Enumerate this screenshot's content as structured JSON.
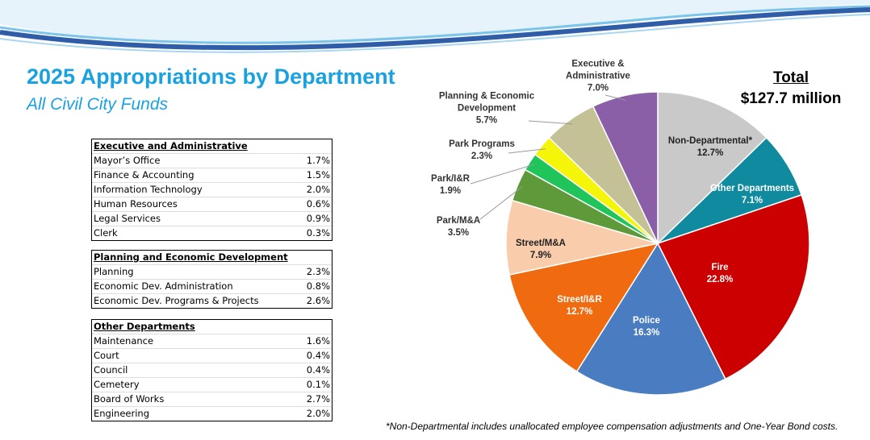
{
  "chart_data": {
    "type": "pie",
    "title": "2025 Appropriations by Department",
    "subtitle": "All Civil City Funds",
    "total_label": "Total",
    "total_value": "$127.7 million",
    "footnote": "*Non-Departmental includes unallocated employee compensation adjustments and One-Year Bond costs.",
    "categories": [
      "Non-Departmental*",
      "Other Departments",
      "Fire",
      "Police",
      "Street/I&R",
      "Street/M&A",
      "Park/M&A",
      "Park/I&R",
      "Park Programs",
      "Planning & Economic Development",
      "Executive & Administrative"
    ],
    "values": [
      12.7,
      7.1,
      22.8,
      16.3,
      12.7,
      7.9,
      3.5,
      1.9,
      2.3,
      5.7,
      7.0
    ],
    "value_labels": [
      "12.7%",
      "7.1%",
      "22.8%",
      "16.3%",
      "12.7%",
      "7.9%",
      "3.5%",
      "1.9%",
      "2.3%",
      "5.7%",
      "7.0%"
    ],
    "colors": [
      "#c9c9c9",
      "#0f8a9e",
      "#cc0000",
      "#4a7cc1",
      "#f06a0f",
      "#f9cdac",
      "#5e9a3a",
      "#1fc45a",
      "#f5f50a",
      "#c4c196",
      "#8a5fa8"
    ]
  },
  "tables": [
    {
      "title": "Executive and Administrative",
      "rows": [
        [
          "Mayor’s Office",
          "1.7%"
        ],
        [
          "Finance & Accounting",
          "1.5%"
        ],
        [
          "Information Technology",
          "2.0%"
        ],
        [
          "Human Resources",
          "0.6%"
        ],
        [
          "Legal Services",
          "0.9%"
        ],
        [
          "Clerk",
          "0.3%"
        ]
      ]
    },
    {
      "title": "Planning and Economic Development",
      "rows": [
        [
          "Planning",
          "2.3%"
        ],
        [
          "Economic Dev. Administration",
          "0.8%"
        ],
        [
          "Economic Dev. Programs & Projects",
          "2.6%"
        ]
      ]
    },
    {
      "title": "Other Departments",
      "rows": [
        [
          "Maintenance",
          "1.6%"
        ],
        [
          "Court",
          "0.4%"
        ],
        [
          "Council",
          "0.4%"
        ],
        [
          "Cemetery",
          "0.1%"
        ],
        [
          "Board of Works",
          "2.7%"
        ],
        [
          "Engineering",
          "2.0%"
        ]
      ]
    }
  ]
}
